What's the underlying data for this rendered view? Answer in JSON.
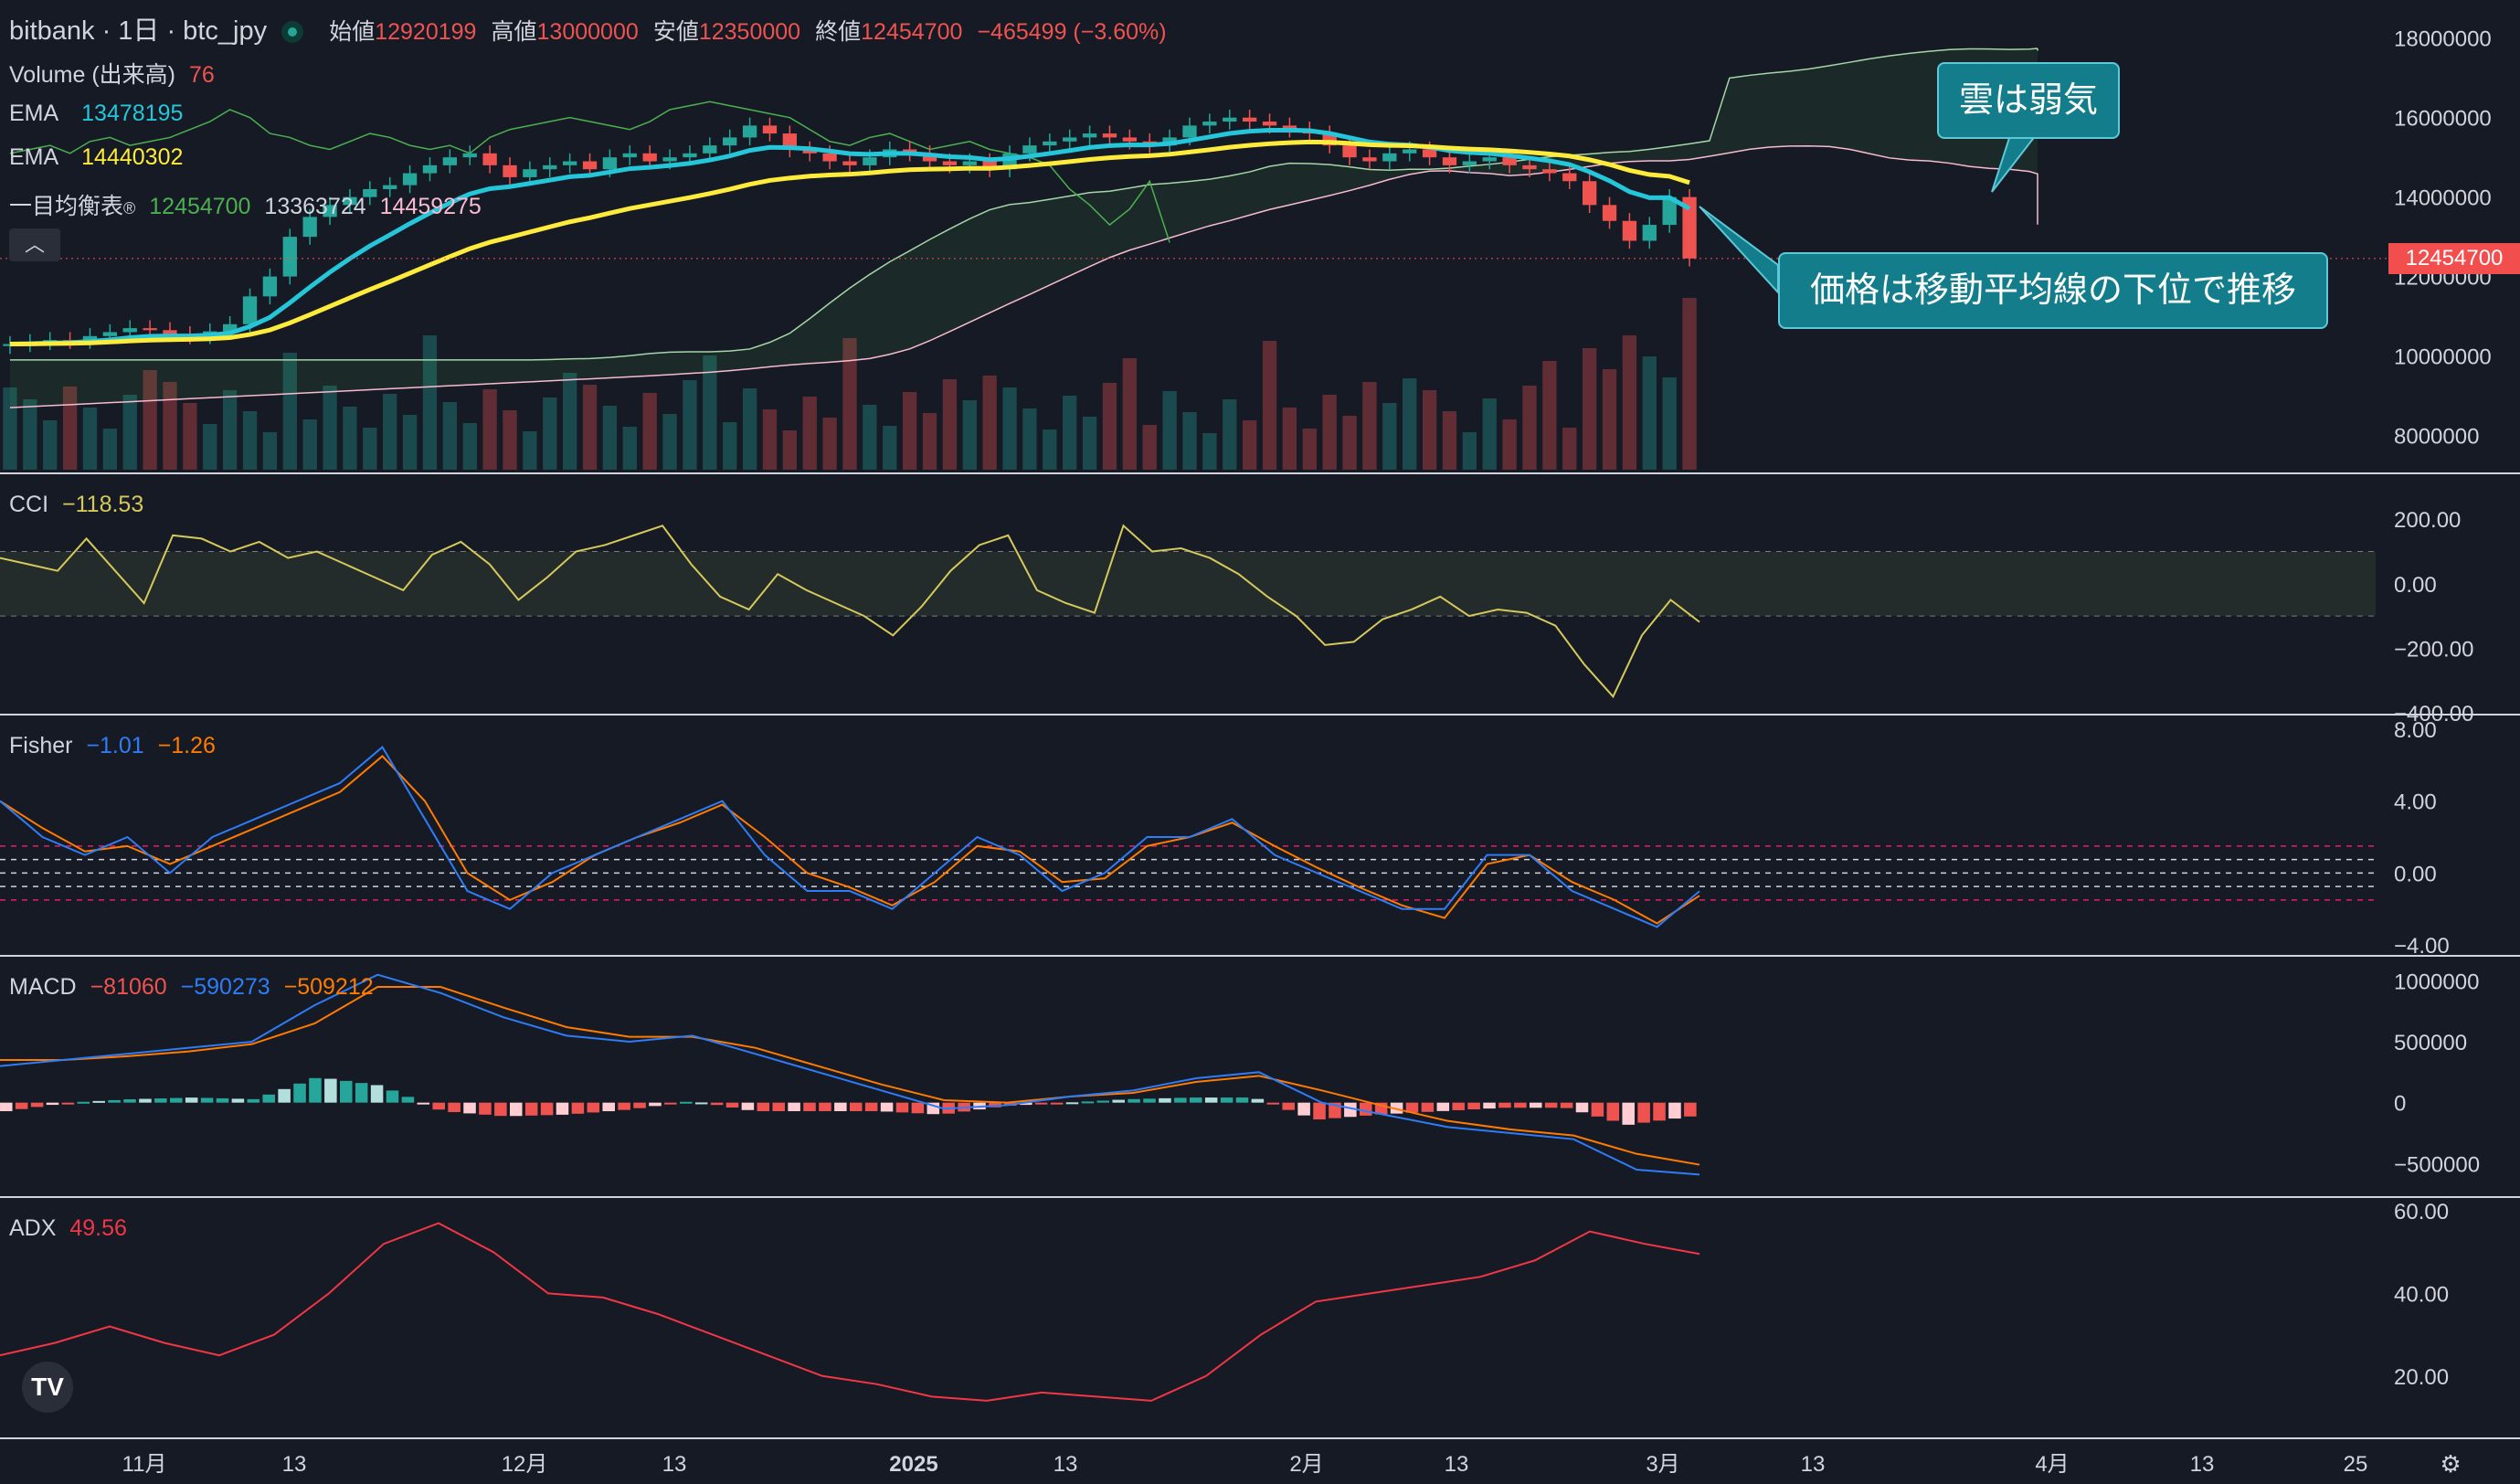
{
  "header": {
    "symbol": "bitbank · 1日 · btc_jpy",
    "open_label": "始値",
    "open": "12920199",
    "high_label": "高値",
    "high": "13000000",
    "low_label": "安値",
    "low": "12350000",
    "close_label": "終値",
    "close": "12454700",
    "change": "−465499 (−3.60%)"
  },
  "legends": {
    "volume_label": "Volume (出来高)",
    "volume_value": "76",
    "ema1_label": "EMA",
    "ema1_value": "13478195",
    "ema2_label": "EMA",
    "ema2_value": "14440302",
    "ichimoku_label": "一目均衡表",
    "ichimoku_v1": "12454700",
    "ichimoku_v2": "13363724",
    "ichimoku_v3": "14459275",
    "cci_label": "CCI",
    "cci_value": "−118.53",
    "fisher_label": "Fisher",
    "fisher_v1": "−1.01",
    "fisher_v2": "−1.26",
    "macd_label": "MACD",
    "macd_v1": "−81060",
    "macd_v2": "−590273",
    "macd_v3": "−509212",
    "adx_label": "ADX",
    "adx_value": "49.56"
  },
  "price_tag": "12454700",
  "callouts": {
    "cloud": "雲は弱気",
    "price": "価格は移動平均線の下位で推移"
  },
  "colors": {
    "up": "#26a69a",
    "down": "#ef5350",
    "ema_fast": "#26c6da",
    "ema_slow": "#ffeb3b",
    "cci": "#d4c95a",
    "fisher_fast": "#2e7cf6",
    "fisher_slow": "#ff7a00",
    "macd_line": "#2e7cf6",
    "macd_signal": "#ff7a00",
    "adx": "#f23645"
  },
  "chart_data": [
    {
      "type": "candlestick",
      "title": "bitbank · 1日 · btc_jpy",
      "y_ticks": [
        "18000000",
        "16000000",
        "14000000",
        "12000000",
        "10000000",
        "8000000"
      ],
      "x_ticks": [
        "11月",
        "13",
        "12月",
        "13",
        "2025",
        "13",
        "2月",
        "13",
        "3月",
        "13",
        "4月",
        "13",
        "25"
      ],
      "close": [
        10300000,
        10350000,
        10400000,
        10380000,
        10500000,
        10600000,
        10700000,
        10650000,
        10550000,
        10500000,
        10620000,
        10800000,
        11500000,
        12000000,
        13000000,
        13500000,
        13800000,
        14000000,
        14200000,
        14300000,
        14600000,
        14800000,
        15000000,
        15100000,
        14800000,
        14500000,
        14700000,
        14800000,
        14900000,
        14700000,
        15000000,
        15100000,
        14900000,
        15000000,
        15100000,
        15300000,
        15500000,
        15800000,
        15600000,
        15200000,
        15100000,
        14900000,
        14800000,
        15000000,
        15200000,
        15100000,
        14900000,
        14800000,
        14900000,
        14700000,
        15100000,
        15300000,
        15400000,
        15500000,
        15600000,
        15500000,
        15400000,
        15300000,
        15500000,
        15800000,
        15900000,
        16000000,
        15900000,
        15800000,
        15700000,
        15600000,
        15300000,
        15000000,
        14900000,
        15100000,
        15200000,
        15000000,
        14800000,
        14900000,
        15000000,
        14800000,
        14700000,
        14600000,
        14400000,
        13800000,
        13400000,
        12900000,
        13300000,
        14000000,
        12454700
      ],
      "ema_fast_last": 13478195,
      "ema_slow_last": 14440302,
      "ichimoku": [
        12454700,
        13363724,
        14459275
      ]
    },
    {
      "type": "bar",
      "title": "Volume (出来高)",
      "last_value": 76
    },
    {
      "type": "line",
      "title": "CCI",
      "y_ticks": [
        "200.00",
        "0.00",
        "−200.00",
        "−400.00"
      ],
      "bands": [
        100,
        -100
      ],
      "values": [
        80,
        60,
        40,
        140,
        40,
        -60,
        150,
        140,
        100,
        130,
        80,
        100,
        60,
        20,
        -20,
        90,
        130,
        60,
        -50,
        20,
        100,
        120,
        150,
        180,
        60,
        -40,
        -80,
        30,
        -20,
        -60,
        -100,
        -160,
        -70,
        40,
        120,
        150,
        -20,
        -60,
        -90,
        180,
        100,
        110,
        80,
        30,
        -40,
        -100,
        -190,
        -180,
        -110,
        -80,
        -40,
        -100,
        -80,
        -90,
        -130,
        -250,
        -350,
        -160,
        -50,
        -118.53
      ],
      "last_value": -118.53
    },
    {
      "type": "line",
      "title": "Fisher",
      "y_ticks": [
        "8.00",
        "4.00",
        "0.00",
        "−4.00"
      ],
      "series": [
        {
          "values": [
            4,
            2,
            1,
            2,
            0,
            2,
            3,
            4,
            5,
            7,
            3,
            -1,
            -2,
            0,
            1,
            2,
            3,
            4,
            1,
            -1,
            -1,
            -2,
            0,
            2,
            1,
            -1,
            0,
            2,
            2,
            3,
            1,
            0,
            -1,
            -2,
            -2,
            1,
            1,
            -1,
            -2,
            -3,
            -1.01
          ],
          "last_value": -1.01
        },
        {
          "values": [
            4,
            2.5,
            1.2,
            1.5,
            0.5,
            1.5,
            2.5,
            3.5,
            4.5,
            6.5,
            4,
            0,
            -1.5,
            -0.5,
            1,
            2,
            2.8,
            3.8,
            2,
            0,
            -0.8,
            -1.8,
            -0.5,
            1.5,
            1.2,
            -0.5,
            -0.3,
            1.5,
            2,
            2.8,
            1.5,
            0.3,
            -0.8,
            -1.8,
            -2.5,
            0.5,
            1,
            -0.5,
            -1.5,
            -2.8,
            -1.26
          ],
          "last_value": -1.26
        }
      ],
      "bands": [
        1.5,
        0.75,
        0,
        -0.75,
        -1.5
      ]
    },
    {
      "type": "bar",
      "title": "MACD",
      "y_ticks": [
        "1000000",
        "500000",
        "0",
        "−500000"
      ],
      "series": [
        {
          "values": [
            300000,
            350000,
            400000,
            450000,
            500000,
            800000,
            1050000,
            900000,
            700000,
            550000,
            500000,
            550000,
            400000,
            250000,
            100000,
            -50000,
            -20000,
            50000,
            100000,
            200000,
            250000,
            0,
            -100000,
            -200000,
            -250000,
            -300000,
            -550000,
            -590273
          ],
          "last_value": -590273
        },
        {
          "values": [
            350000,
            350000,
            380000,
            420000,
            480000,
            650000,
            950000,
            950000,
            780000,
            620000,
            540000,
            540000,
            450000,
            300000,
            150000,
            20000,
            0,
            50000,
            80000,
            170000,
            220000,
            100000,
            -30000,
            -150000,
            -220000,
            -270000,
            -420000,
            -509212
          ],
          "last_value": -509212
        }
      ],
      "histogram_last": -81060
    },
    {
      "type": "line",
      "title": "ADX",
      "y_ticks": [
        "60.00",
        "40.00",
        "20.00"
      ],
      "values": [
        25,
        28,
        32,
        28,
        25,
        30,
        40,
        52,
        57,
        50,
        40,
        39,
        35,
        30,
        25,
        20,
        18,
        15,
        14,
        16,
        15,
        14,
        20,
        30,
        38,
        40,
        42,
        44,
        48,
        55,
        52,
        49.56
      ],
      "last_value": 49.56
    }
  ]
}
